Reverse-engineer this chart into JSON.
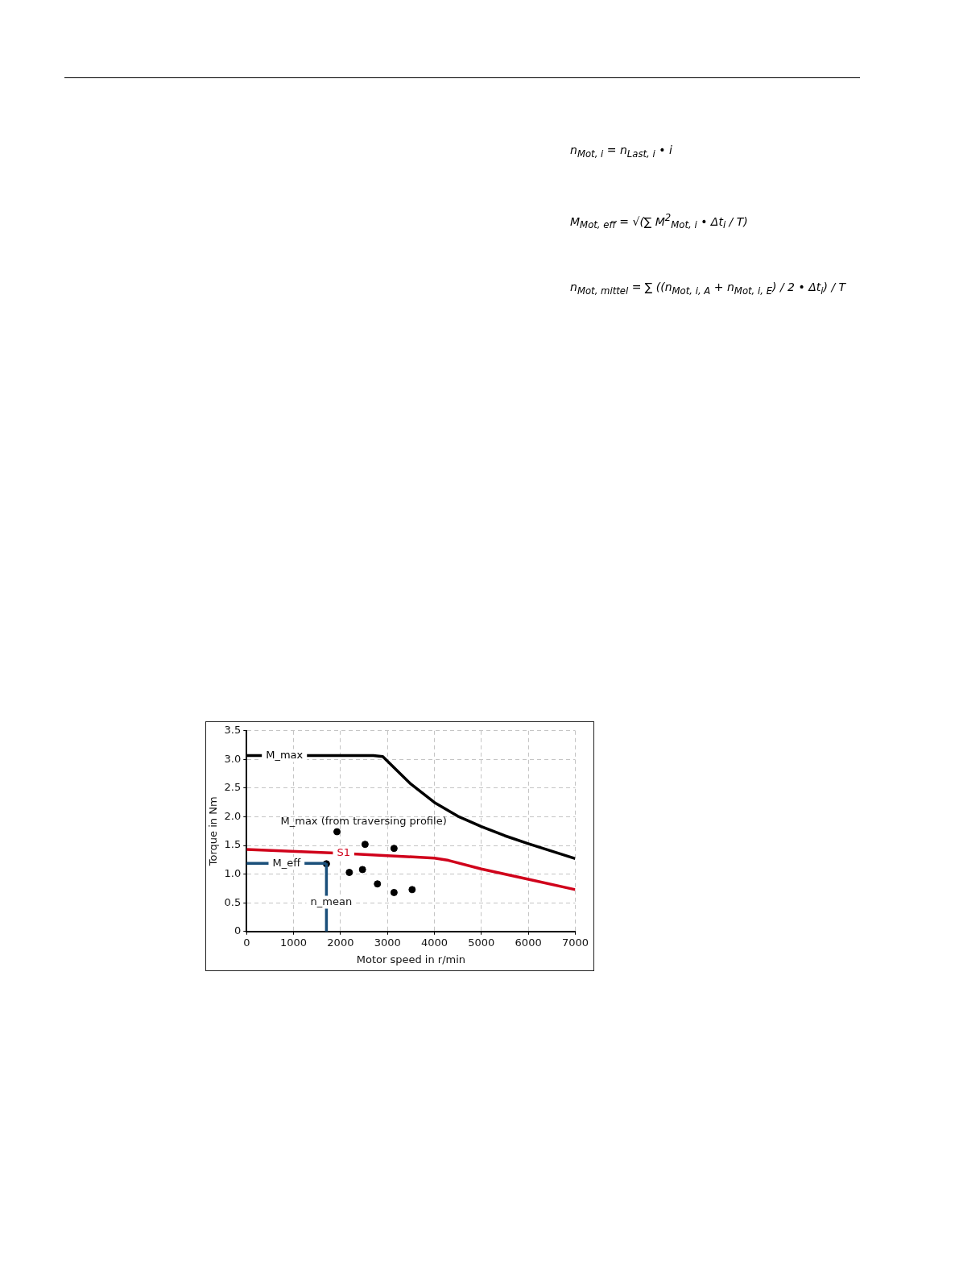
{
  "chart_data": {
    "type": "line",
    "xlabel": "Motor speed in r/min",
    "ylabel": "Torque in Nm",
    "xlim": [
      0,
      7000
    ],
    "xticks": [
      0,
      1000,
      2000,
      3000,
      4000,
      5000,
      6000,
      7000
    ],
    "ylim": [
      0,
      3.5
    ],
    "yticks": [
      0,
      {
        "value": 0.5,
        "label": "0.5"
      },
      {
        "value": 1,
        "label": "1.0"
      },
      {
        "value": 1.5,
        "label": "1.5"
      },
      {
        "value": 2,
        "label": "2.0"
      },
      {
        "value": 2.5,
        "label": "2.5"
      },
      {
        "value": 3,
        "label": "3.0"
      },
      {
        "value": 3.5,
        "label": "3.5"
      }
    ],
    "grid": true,
    "legend": false,
    "marker": "none",
    "line_style": "solid",
    "series": [
      {
        "name": "M_max",
        "color": "#000000",
        "x": [
          0,
          2700,
          2900,
          3500,
          4000,
          4500,
          5000,
          5500,
          6000,
          6500,
          7000
        ],
        "values": [
          3.07,
          3.07,
          3.05,
          2.57,
          2.25,
          2.01,
          1.83,
          1.67,
          1.53,
          1.4,
          1.27
        ]
      },
      {
        "name": "S1",
        "color": "#d0021b",
        "x": [
          0,
          1790,
          2340,
          4000,
          4300,
          5000,
          6000,
          7000
        ],
        "values": [
          1.43,
          1.37,
          1.35,
          1.28,
          1.24,
          1.09,
          0.91,
          0.73
        ]
      },
      {
        "type": "scatter",
        "color": "#000000",
        "marker": "circle",
        "x": [
          1700,
          1925,
          2187,
          2468,
          2523,
          2786,
          3140,
          3140,
          3525
        ],
        "values": [
          1.18,
          1.74,
          1.03,
          1.08,
          1.52,
          0.83,
          1.45,
          0.68,
          0.73
        ]
      }
    ],
    "ref_lines": [
      {
        "axis": "y",
        "value": 1.19,
        "label": "M_eff",
        "color": "#1a4f7a"
      },
      {
        "axis": "x",
        "value": 1700,
        "label": "n_mean",
        "color": "#1a4f7a"
      }
    ],
    "annotations": [
      {
        "text": "M_max (from traversing profile)",
        "x": 1925,
        "y": 1.74
      },
      "n$_{Mot, i}$ = n$_{Last, i}$ • i",
      "M$_{Mot, eff}$ = √(∑ M$^{2}$$_{Mot, i}$ • Δt$_{i}$ / T)",
      "n$_{Mot, mittel}$ = ∑ ((n$_{Mot, i, A}$ + n$_{Mot, i, E}$) / 2 • Δt$_{i}$) / T"
    ]
  }
}
